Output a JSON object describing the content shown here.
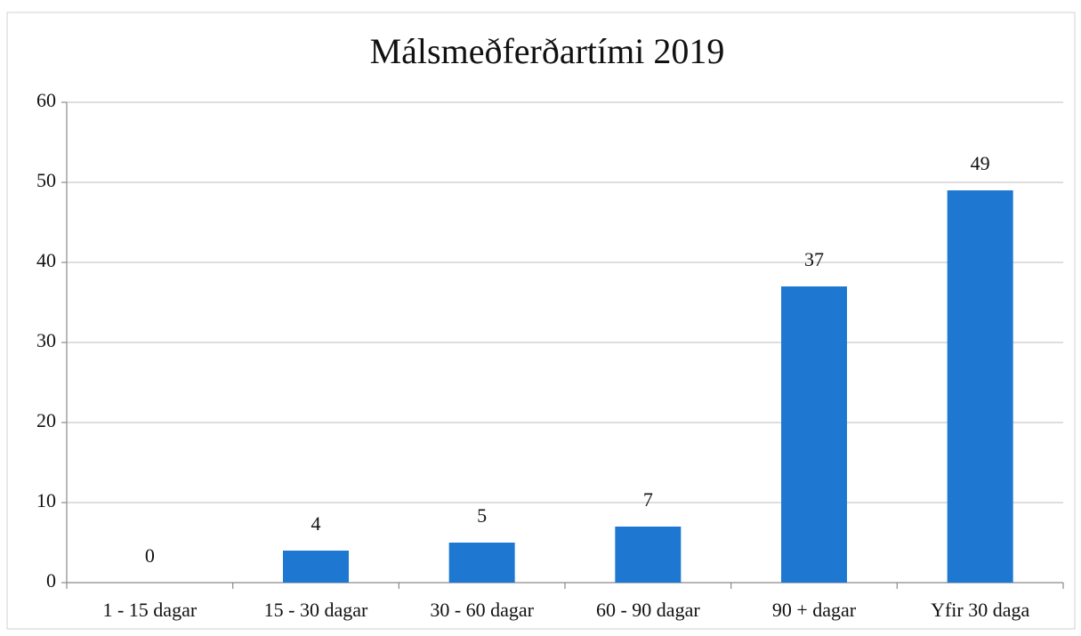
{
  "chart_data": {
    "type": "bar",
    "title": "Málsmeðferðartími 2019",
    "categories": [
      "1 - 15 dagar",
      "15 - 30 dagar",
      "30 - 60 dagar",
      "60 - 90 dagar",
      "90 + dagar",
      "Yfir 30 daga"
    ],
    "values": [
      0,
      4,
      5,
      7,
      37,
      49
    ],
    "color": "#1e78d2",
    "ylim": [
      0,
      60
    ],
    "yticks": [
      0,
      10,
      20,
      30,
      40,
      50,
      60
    ],
    "grid": true
  }
}
